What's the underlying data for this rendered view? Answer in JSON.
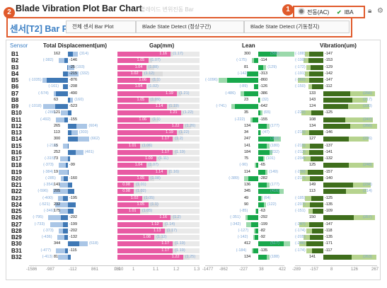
{
  "window": {
    "title": "Blade Vibration Plot Bar Chart",
    "subtitle": "블레이드 변위진동 Bar"
  },
  "callouts": {
    "one": "1",
    "two": "2"
  },
  "actions": {
    "interlock_label": "전동(AC)",
    "check_label": "IBA"
  },
  "panel": {
    "title": "센서[T2] Bar Plot",
    "tabs": [
      {
        "label": "전체 센서 Bar Plot"
      },
      {
        "label": "Blade State Detect (정상구간)"
      },
      {
        "label": "Blade State Detect (기동정지)"
      }
    ]
  },
  "columns": {
    "sensor": "Sensor",
    "disp": "Total Displacement(um)",
    "gap": "Gap(mm)",
    "lean": "Lean",
    "vib": "Vibration(um)"
  },
  "colors": {
    "disp": "#3f78b5",
    "disp_ref": "#aac6e6",
    "gap": "#e85aa3",
    "gap_ref": "#dcdcdc",
    "lean": "#18a84b",
    "lean_ref": "#9bd9ab",
    "vib": "#3f6e1c",
    "vib_ref": "#b6d38e",
    "accent": "#e05a2b",
    "title_blue": "#3b7fc4"
  },
  "axis_ticks": {
    "disp": [
      "-1586",
      "-987",
      "-112",
      "861",
      "1610"
    ],
    "gap": [
      "0.9",
      "1",
      "1.1",
      "1.2",
      "1.3"
    ],
    "lean": [
      "-1477",
      "-862",
      "-227",
      "38",
      "422"
    ],
    "vib": [
      "-289",
      "-157",
      "8",
      "126",
      "267"
    ]
  },
  "chart_data": {
    "type": "bar",
    "categories": [
      "B1",
      "B2",
      "B3",
      "B4",
      "B5",
      "B6",
      "B7",
      "B8",
      "B9",
      "B10",
      "B11",
      "B12",
      "B13",
      "B14",
      "B15",
      "B16",
      "B17",
      "B18",
      "B19",
      "B20",
      "B21",
      "B22",
      "B23",
      "B24",
      "B25",
      "B26",
      "B27",
      "B28",
      "B29",
      "B30",
      "B31",
      "B32"
    ],
    "series": [
      {
        "name": "Total Displacement(um)",
        "values": [
          162,
          -146,
          -25,
          -215,
          -876,
          -208,
          -490,
          63,
          -523,
          121,
          -155,
          265,
          113,
          300,
          15,
          252,
          73,
          -99,
          19,
          -160,
          141,
          205,
          -195,
          232,
          175,
          -292,
          -199,
          -202,
          -132,
          344,
          -115,
          81
        ],
        "ref": [
          314,
          -382,
          193,
          332,
          -1035,
          -161,
          -574,
          160,
          -1018,
          -288,
          -492,
          604,
          303,
          662,
          -216,
          481,
          -315,
          -373,
          -384,
          -285,
          -354,
          -596,
          -400,
          -521,
          -346,
          -795,
          -733,
          -373,
          -436,
          618,
          -477,
          -413
        ]
      },
      {
        "name": "Gap(mm)",
        "values": [
          1.16,
          1.05,
          1.04,
          1.02,
          1.06,
          1.04,
          1.19,
          1.05,
          1.14,
          1.21,
          1.06,
          1.22,
          1.19,
          1.17,
          1.01,
          1.17,
          1.09,
          1.04,
          1.14,
          1.05,
          0.98,
          0.98,
          1.02,
          1.05,
          1.01,
          1.16,
          1.12,
          1.13,
          1.08,
          1.17,
          1.17,
          1.22
        ],
        "ref": [
          1.17,
          1.07,
          1.08,
          1.12,
          1.1,
          1.02,
          1.21,
          1.09,
          1.19,
          1.22,
          1.1,
          1.26,
          1.22,
          1.2,
          1.06,
          1.19,
          1.11,
          1.07,
          1.16,
          1.08,
          1.01,
          1.02,
          1.05,
          1.1,
          1.05,
          1.2,
          1.14,
          1.17,
          1.12,
          1.19,
          1.19,
          1.25
        ]
      },
      {
        "name": "Lean",
        "values": [
          300,
          -114,
          81,
          -313,
          -860,
          -126,
          -386,
          23,
          -642,
          35,
          -155,
          134,
          34,
          247,
          141,
          184,
          75,
          -65,
          114,
          -282,
          136,
          345,
          49,
          90,
          -63,
          -292,
          -199,
          -82,
          -92,
          412,
          -135,
          134
        ],
        "ref": [
          582,
          -175,
          129,
          -142,
          -1096,
          -89,
          -486,
          32,
          -741,
          65,
          -222,
          177,
          47,
          363,
          180,
          232,
          101,
          -90,
          149,
          -389,
          177,
          416,
          64,
          122,
          -85,
          -351,
          -342,
          -127,
          -142,
          517,
          -184,
          188
        ]
      },
      {
        "name": "Vibration(um)",
        "values": [
          -147,
          -153,
          -129,
          -142,
          -147,
          -112,
          133,
          143,
          124,
          -125,
          108,
          134,
          -146,
          127,
          -137,
          -141,
          -132,
          125,
          -157,
          -140,
          149,
          113,
          -125,
          -135,
          -109,
          150,
          -147,
          -118,
          -135,
          -171,
          -117,
          141
        ],
        "ref": [
          -188,
          -199,
          -172,
          -191,
          -260,
          -150,
          256,
          217,
          230,
          -222,
          247,
          266,
          -215,
          226,
          -215,
          -212,
          -204,
          248,
          -239,
          -217,
          234,
          214,
          -185,
          -207,
          -151,
          257,
          -247,
          -174,
          -205,
          -246,
          -174,
          263
        ]
      }
    ],
    "ranges": {
      "disp": [
        -1586,
        1610
      ],
      "gap": [
        0.9,
        1.3
      ],
      "lean": [
        -1477,
        422
      ],
      "vib": [
        -289,
        267
      ]
    },
    "grid": false,
    "legend": "none"
  }
}
